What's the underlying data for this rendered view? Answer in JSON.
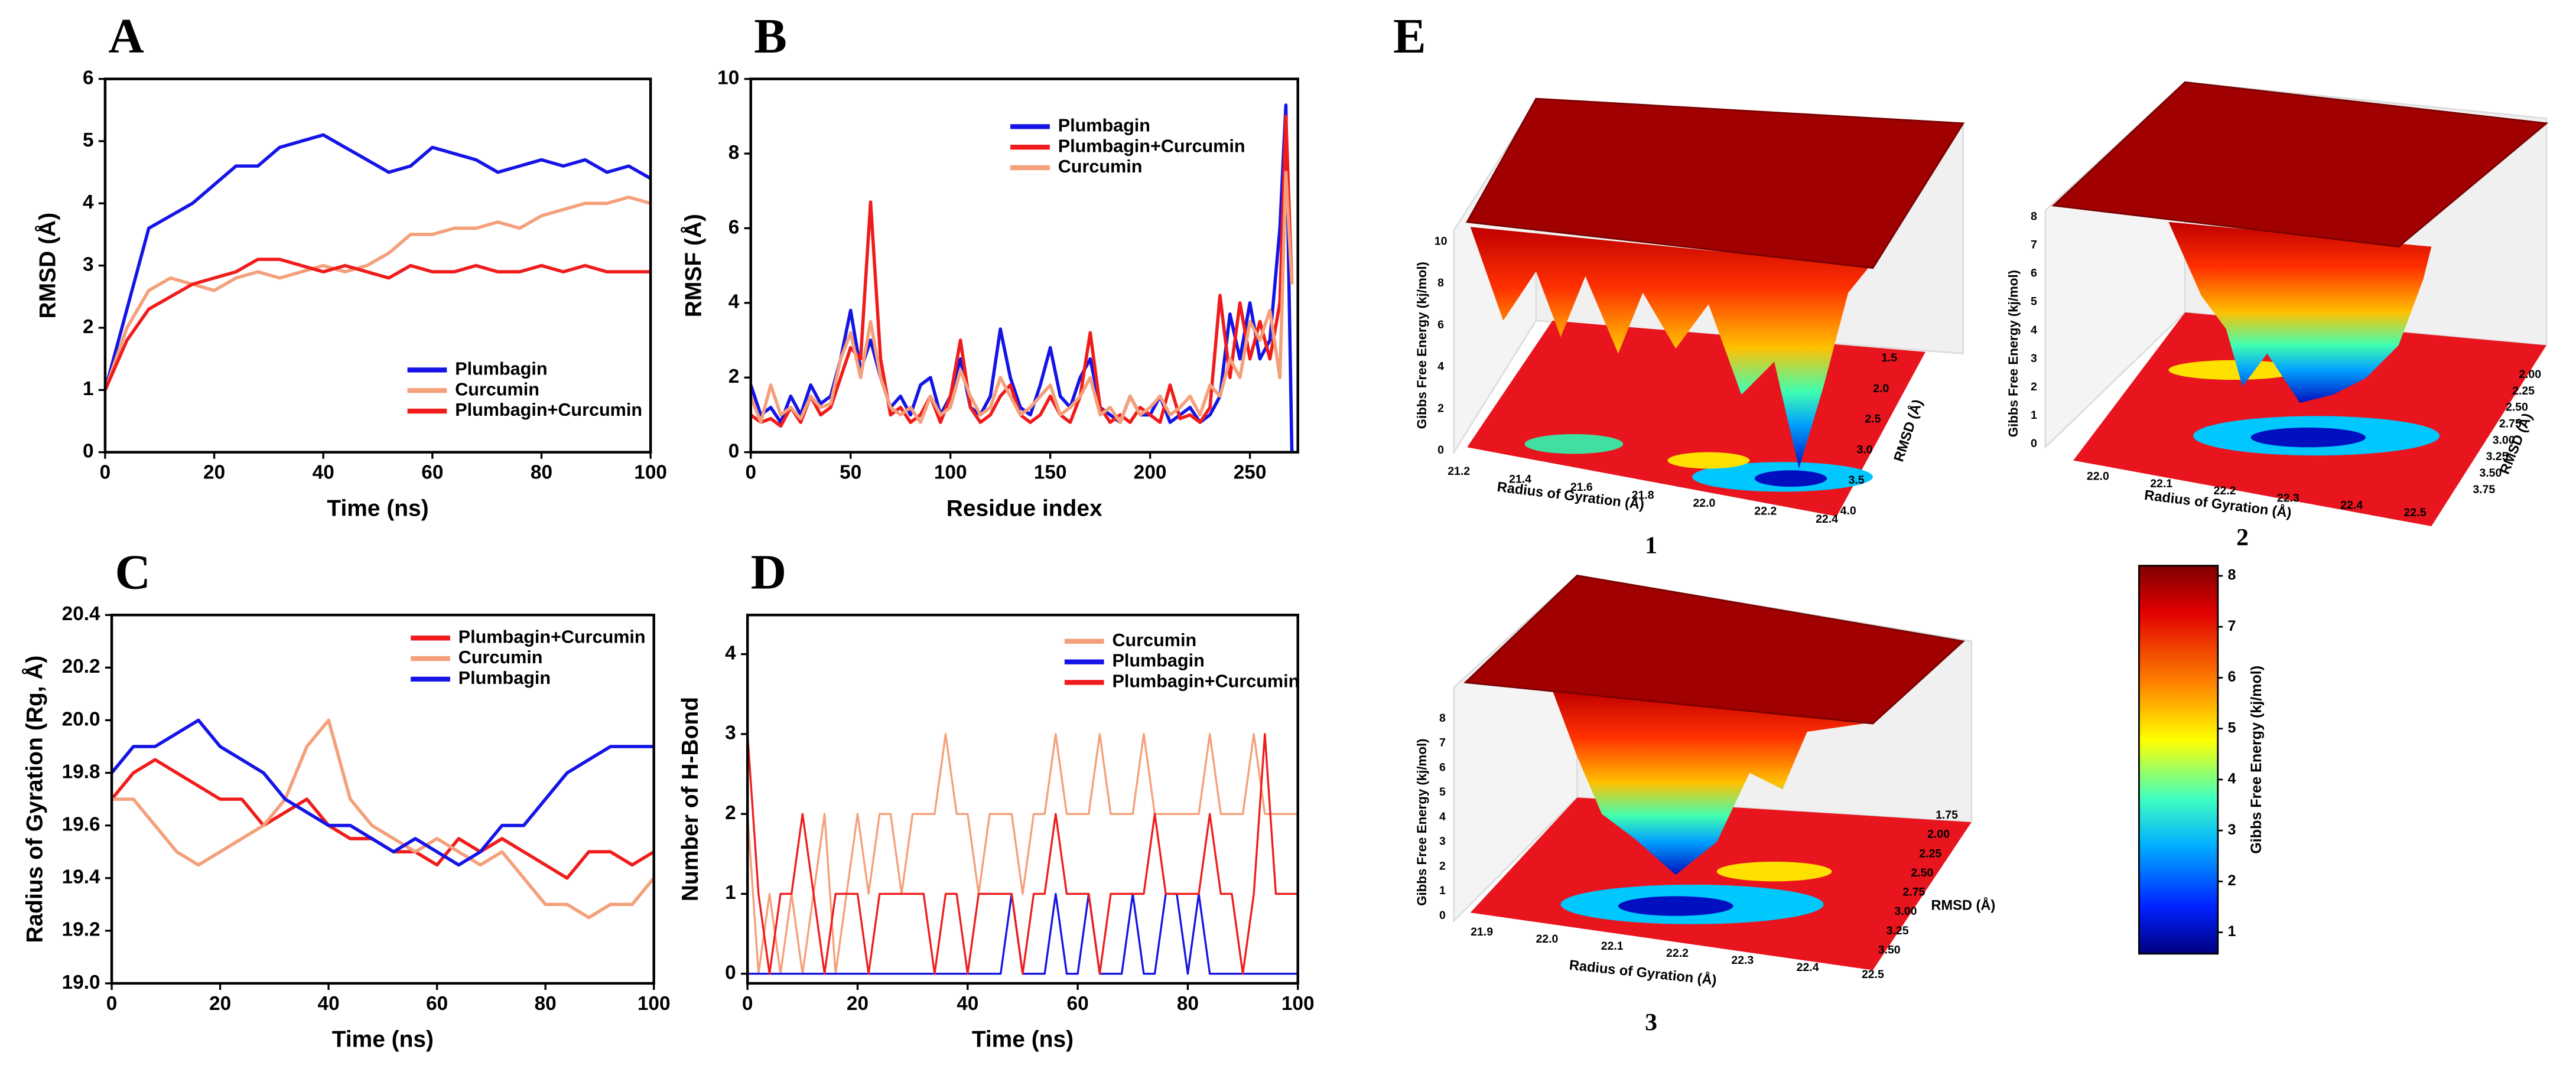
{
  "chart_data": [
    {
      "type": "line",
      "panel": "A",
      "xlabel": "Time (ns)",
      "ylabel": "RMSD (Å)",
      "x": [
        0,
        4,
        8,
        12,
        16,
        20,
        24,
        28,
        32,
        36,
        40,
        44,
        48,
        52,
        56,
        60,
        64,
        68,
        72,
        76,
        80,
        84,
        88,
        92,
        96,
        100
      ],
      "xlim": [
        0,
        100
      ],
      "xticks": [
        0,
        20,
        40,
        60,
        80,
        100
      ],
      "ylim": [
        0,
        6
      ],
      "yticks": [
        0,
        1,
        2,
        3,
        4,
        5,
        6
      ],
      "legend": "lower right",
      "series": [
        {
          "name": "Plumbagin",
          "color": "#1414e6",
          "values": [
            1.0,
            2.3,
            3.6,
            3.8,
            4.0,
            4.3,
            4.6,
            4.6,
            4.9,
            5.0,
            5.1,
            4.9,
            4.7,
            4.5,
            4.6,
            4.9,
            4.8,
            4.7,
            4.5,
            4.6,
            4.7,
            4.6,
            4.7,
            4.5,
            4.6,
            4.4
          ]
        },
        {
          "name": "Curcumin",
          "color": "#f4a07a",
          "values": [
            1.0,
            2.0,
            2.6,
            2.8,
            2.7,
            2.6,
            2.8,
            2.9,
            2.8,
            2.9,
            3.0,
            2.9,
            3.0,
            3.2,
            3.5,
            3.5,
            3.6,
            3.6,
            3.7,
            3.6,
            3.8,
            3.9,
            4.0,
            4.0,
            4.1,
            4.0
          ]
        },
        {
          "name": "Plumbagin+Curcumin",
          "color": "#f01c1c",
          "values": [
            1.0,
            1.8,
            2.3,
            2.5,
            2.7,
            2.8,
            2.9,
            3.1,
            3.1,
            3.0,
            2.9,
            3.0,
            2.9,
            2.8,
            3.0,
            2.9,
            2.9,
            3.0,
            2.9,
            2.9,
            3.0,
            2.9,
            3.0,
            2.9,
            2.9,
            2.9
          ]
        }
      ]
    },
    {
      "type": "line",
      "panel": "B",
      "xlabel": "Residue index",
      "ylabel": "RMSF (Å)",
      "x": [
        0,
        5,
        10,
        15,
        20,
        25,
        30,
        35,
        40,
        45,
        50,
        55,
        60,
        65,
        70,
        75,
        80,
        85,
        90,
        95,
        100,
        105,
        110,
        115,
        120,
        125,
        130,
        135,
        140,
        145,
        150,
        155,
        160,
        165,
        170,
        175,
        180,
        185,
        190,
        195,
        200,
        205,
        210,
        215,
        220,
        225,
        230,
        235,
        240,
        245,
        250,
        255,
        260,
        265,
        268,
        271
      ],
      "xlim": [
        0,
        274
      ],
      "xticks": [
        0,
        50,
        100,
        150,
        200,
        250
      ],
      "ylim": [
        0,
        10
      ],
      "yticks": [
        0,
        2,
        4,
        6,
        8,
        10
      ],
      "legend": "upper right",
      "series": [
        {
          "name": "Plumbagin",
          "color": "#1414e6",
          "values": [
            1.8,
            1.0,
            1.2,
            0.8,
            1.5,
            1.0,
            1.8,
            1.3,
            1.5,
            2.5,
            3.8,
            2.2,
            3.0,
            2.0,
            1.2,
            1.5,
            1.0,
            1.8,
            2.0,
            1.0,
            1.5,
            2.5,
            1.2,
            1.0,
            1.5,
            3.3,
            2.0,
            1.2,
            1.0,
            1.8,
            2.8,
            1.5,
            1.2,
            2.0,
            2.5,
            1.2,
            1.0,
            0.8,
            1.5,
            1.0,
            1.0,
            1.5,
            0.8,
            1.0,
            1.2,
            0.8,
            1.0,
            1.5,
            3.7,
            2.5,
            4.0,
            2.5,
            3.0,
            6.0,
            9.3,
            0
          ]
        },
        {
          "name": "Plumbagin+Curcumin",
          "color": "#f01c1c",
          "values": [
            1.0,
            0.8,
            0.9,
            0.7,
            1.2,
            0.8,
            1.5,
            1.0,
            1.2,
            2.0,
            2.8,
            2.5,
            6.7,
            2.5,
            1.0,
            1.2,
            0.8,
            1.0,
            1.5,
            0.8,
            1.5,
            3.0,
            1.2,
            0.8,
            1.0,
            1.5,
            1.8,
            1.0,
            0.8,
            1.0,
            1.5,
            1.0,
            0.8,
            1.5,
            3.2,
            1.2,
            0.8,
            1.0,
            0.8,
            1.2,
            1.0,
            0.8,
            1.8,
            0.9,
            1.0,
            0.8,
            1.2,
            4.2,
            2.0,
            4.0,
            2.5,
            3.5,
            2.5,
            4.0,
            9.0,
            4.5
          ]
        },
        {
          "name": "Curcumin",
          "color": "#f4a07a",
          "values": [
            1.5,
            0.8,
            1.8,
            1.0,
            1.2,
            0.9,
            1.5,
            1.2,
            1.3,
            2.5,
            3.2,
            2.0,
            3.5,
            2.0,
            1.2,
            1.0,
            1.2,
            0.8,
            1.5,
            1.0,
            1.2,
            2.2,
            1.5,
            1.0,
            1.2,
            2.0,
            1.5,
            1.0,
            1.2,
            1.5,
            1.8,
            1.0,
            1.2,
            1.5,
            2.0,
            1.0,
            1.2,
            0.8,
            1.5,
            1.0,
            1.2,
            1.5,
            1.0,
            1.2,
            1.5,
            1.0,
            1.8,
            1.5,
            2.5,
            2.0,
            3.5,
            3.0,
            3.8,
            2.0,
            7.5,
            4.5
          ]
        }
      ]
    },
    {
      "type": "line",
      "panel": "C",
      "xlabel": "Time (ns)",
      "ylabel": "Radius of Gyration (Rg, Å)",
      "x": [
        0,
        4,
        8,
        12,
        16,
        20,
        24,
        28,
        32,
        36,
        40,
        44,
        48,
        52,
        56,
        60,
        64,
        68,
        72,
        76,
        80,
        84,
        88,
        92,
        96,
        100
      ],
      "xlim": [
        0,
        100
      ],
      "xticks": [
        0,
        20,
        40,
        60,
        80,
        100
      ],
      "ylim": [
        19.0,
        20.4
      ],
      "yticks": [
        {
          "value": 19.0,
          "label": "19.0"
        },
        19.2,
        19.4,
        19.6,
        19.8,
        {
          "value": 20.0,
          "label": "20.0"
        },
        20.2,
        20.4
      ],
      "legend": "upper right",
      "series": [
        {
          "name": "Plumbagin+Curcumin",
          "color": "#f01c1c",
          "values": [
            19.7,
            19.8,
            19.85,
            19.8,
            19.75,
            19.7,
            19.7,
            19.6,
            19.65,
            19.7,
            19.6,
            19.55,
            19.55,
            19.5,
            19.5,
            19.45,
            19.55,
            19.5,
            19.55,
            19.5,
            19.45,
            19.4,
            19.5,
            19.5,
            19.45,
            19.5
          ]
        },
        {
          "name": "Curcumin",
          "color": "#f4a07a",
          "values": [
            19.7,
            19.7,
            19.6,
            19.5,
            19.45,
            19.5,
            19.55,
            19.6,
            19.7,
            19.9,
            20.0,
            19.7,
            19.6,
            19.55,
            19.5,
            19.55,
            19.5,
            19.45,
            19.5,
            19.4,
            19.3,
            19.3,
            19.25,
            19.3,
            19.3,
            19.4
          ]
        },
        {
          "name": "Plumbagin",
          "color": "#1414e6",
          "values": [
            19.8,
            19.9,
            19.9,
            19.95,
            20.0,
            19.9,
            19.85,
            19.8,
            19.7,
            19.65,
            19.6,
            19.6,
            19.55,
            19.5,
            19.55,
            19.5,
            19.45,
            19.5,
            19.6,
            19.6,
            19.7,
            19.8,
            19.85,
            19.9,
            19.9,
            19.9
          ]
        }
      ]
    },
    {
      "type": "line",
      "panel": "D",
      "xlabel": "Time (ns)",
      "ylabel": "Number of H-Bond",
      "x": [
        0,
        2,
        4,
        6,
        8,
        10,
        12,
        14,
        16,
        18,
        20,
        22,
        24,
        26,
        28,
        30,
        32,
        34,
        36,
        38,
        40,
        42,
        44,
        46,
        48,
        50,
        52,
        54,
        56,
        58,
        60,
        62,
        64,
        66,
        68,
        70,
        72,
        74,
        76,
        78,
        80,
        82,
        84,
        86,
        88,
        90,
        92,
        94,
        96,
        98,
        100
      ],
      "xlim": [
        0,
        100
      ],
      "xticks": [
        0,
        20,
        40,
        60,
        80,
        100
      ],
      "ylim": [
        -0.12,
        4.49
      ],
      "yticks": [
        0,
        1,
        2,
        3,
        4
      ],
      "legend": "upper right",
      "series": [
        {
          "name": "Curcumin",
          "color": "#f4a07a",
          "values": [
            2,
            0,
            1,
            0,
            1,
            0,
            1,
            2,
            0,
            1,
            2,
            1,
            2,
            2,
            1,
            2,
            2,
            2,
            3,
            2,
            2,
            1,
            2,
            2,
            2,
            1,
            2,
            2,
            3,
            2,
            2,
            2,
            3,
            2,
            2,
            2,
            3,
            2,
            2,
            2,
            2,
            2,
            3,
            2,
            2,
            2,
            3,
            2,
            2,
            2,
            2
          ]
        },
        {
          "name": "Plumbagin",
          "color": "#1414e6",
          "values": [
            0,
            0,
            0,
            0,
            0,
            0,
            0,
            0,
            0,
            0,
            0,
            0,
            0,
            0,
            0,
            0,
            0,
            0,
            0,
            0,
            0,
            0,
            0,
            0,
            1,
            0,
            0,
            0,
            1,
            0,
            0,
            1,
            0,
            0,
            0,
            1,
            0,
            0,
            1,
            1,
            0,
            1,
            0,
            0,
            0,
            0,
            0,
            0,
            0,
            0,
            0
          ]
        },
        {
          "name": "Plumbagin+Curcumin",
          "color": "#f01c1c",
          "values": [
            3,
            1,
            0,
            1,
            1,
            2,
            1,
            0,
            1,
            1,
            1,
            0,
            1,
            1,
            1,
            1,
            1,
            0,
            1,
            1,
            0,
            1,
            1,
            1,
            1,
            0,
            1,
            1,
            2,
            1,
            1,
            1,
            0,
            1,
            1,
            1,
            1,
            2,
            1,
            1,
            1,
            1,
            2,
            1,
            1,
            0,
            1,
            3,
            1,
            1,
            1
          ]
        }
      ]
    },
    {
      "type": "surface3d",
      "panel": "E",
      "caption": "1",
      "zlabel": "Gibbs Free Energy (kj/mol)",
      "xlabel": "Radius of Gyration (Å)",
      "ylabel": "RMSD (Å)",
      "xticks": [
        21.2,
        21.4,
        21.6,
        21.8,
        {
          "value": 22.0,
          "label": "22.0"
        },
        22.2,
        22.4
      ],
      "yticks": [
        1.5,
        {
          "value": 2.0,
          "label": "2.0"
        },
        2.5,
        {
          "value": 3.0,
          "label": "3.0"
        },
        3.5,
        {
          "value": 4.0,
          "label": "4.0"
        }
      ],
      "zticks": [
        0,
        2,
        4,
        6,
        8,
        10
      ]
    },
    {
      "type": "surface3d",
      "caption": "2",
      "zlabel": "Gibbs Free Energy (kj/mol)",
      "xlabel": "Radius of Gyration (Å)",
      "ylabel": "RMSD (Å)",
      "xticks": [
        {
          "value": 22.0,
          "label": "22.0"
        },
        22.1,
        22.2,
        22.3,
        22.4,
        22.5
      ],
      "yticks": [
        {
          "value": 2.0,
          "label": "2.00"
        },
        2.25,
        {
          "value": 2.5,
          "label": "2.50"
        },
        2.75,
        {
          "value": 3.0,
          "label": "3.00"
        },
        3.25,
        {
          "value": 3.5,
          "label": "3.50"
        },
        3.75
      ],
      "zticks": [
        0,
        1,
        2,
        3,
        4,
        5,
        6,
        7,
        8
      ]
    },
    {
      "type": "surface3d",
      "caption": "3",
      "zlabel": "Gibbs Free Energy (kj/mol)",
      "xlabel": "Radius of Gyration (Å)",
      "ylabel": "RMSD (Å)",
      "xticks": [
        21.9,
        {
          "value": 22.0,
          "label": "22.0"
        },
        22.1,
        22.2,
        22.3,
        22.4,
        22.5
      ],
      "yticks": [
        1.75,
        {
          "value": 2.0,
          "label": "2.00"
        },
        2.25,
        {
          "value": 2.5,
          "label": "2.50"
        },
        2.75,
        {
          "value": 3.0,
          "label": "3.00"
        },
        3.25,
        {
          "value": 3.5,
          "label": "3.50"
        }
      ],
      "zticks": [
        0,
        1,
        2,
        3,
        4,
        5,
        6,
        7,
        8
      ]
    },
    {
      "type": "colorbar",
      "label": "Gibbs Free Energy (kj/mol)",
      "ylim": [
        0.58,
        8.2
      ],
      "yticks": [
        1,
        2,
        3,
        4,
        5,
        6,
        7,
        8
      ]
    }
  ]
}
